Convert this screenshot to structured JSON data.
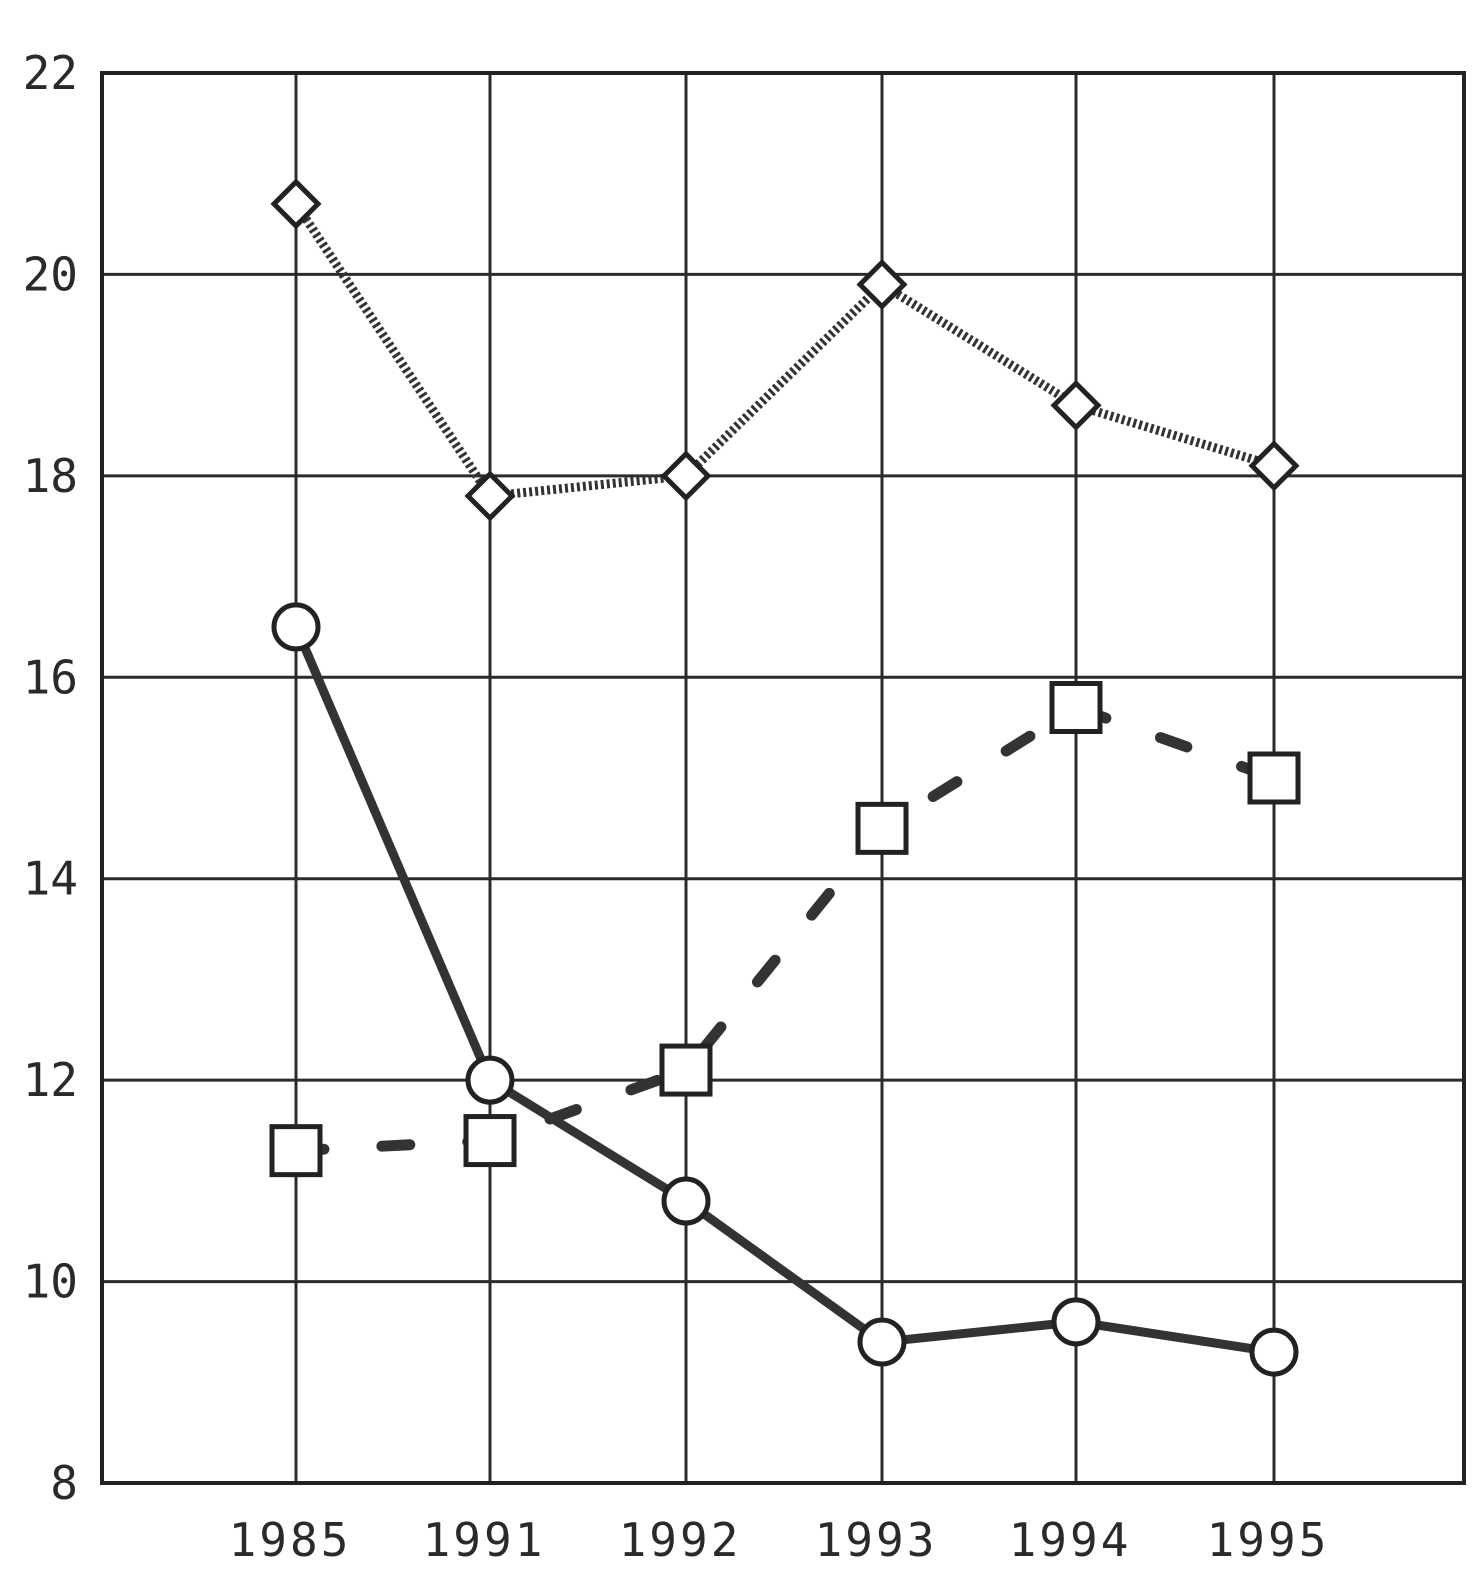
{
  "chart_data": {
    "type": "line",
    "title": "",
    "xlabel": "",
    "ylabel": "",
    "categories": [
      "1985",
      "1991",
      "1992",
      "1993",
      "1994",
      "1995"
    ],
    "ylim": [
      8,
      22
    ],
    "yticks": [
      8,
      10,
      12,
      14,
      16,
      18,
      20,
      22
    ],
    "grid": true,
    "legend": "none",
    "series": [
      {
        "values": [
          20.7,
          17.8,
          18.0,
          19.9,
          18.7,
          18.1
        ],
        "marker": "diamond",
        "line_style": "dotted",
        "color": "#333333"
      },
      {
        "values": [
          11.3,
          11.4,
          12.1,
          14.5,
          15.7,
          15.0
        ],
        "marker": "square",
        "line_style": "dashed",
        "color": "#333333"
      },
      {
        "values": [
          16.5,
          12.0,
          10.8,
          9.4,
          9.6,
          9.3
        ],
        "marker": "circle",
        "line_style": "solid",
        "color": "#333333"
      }
    ]
  }
}
